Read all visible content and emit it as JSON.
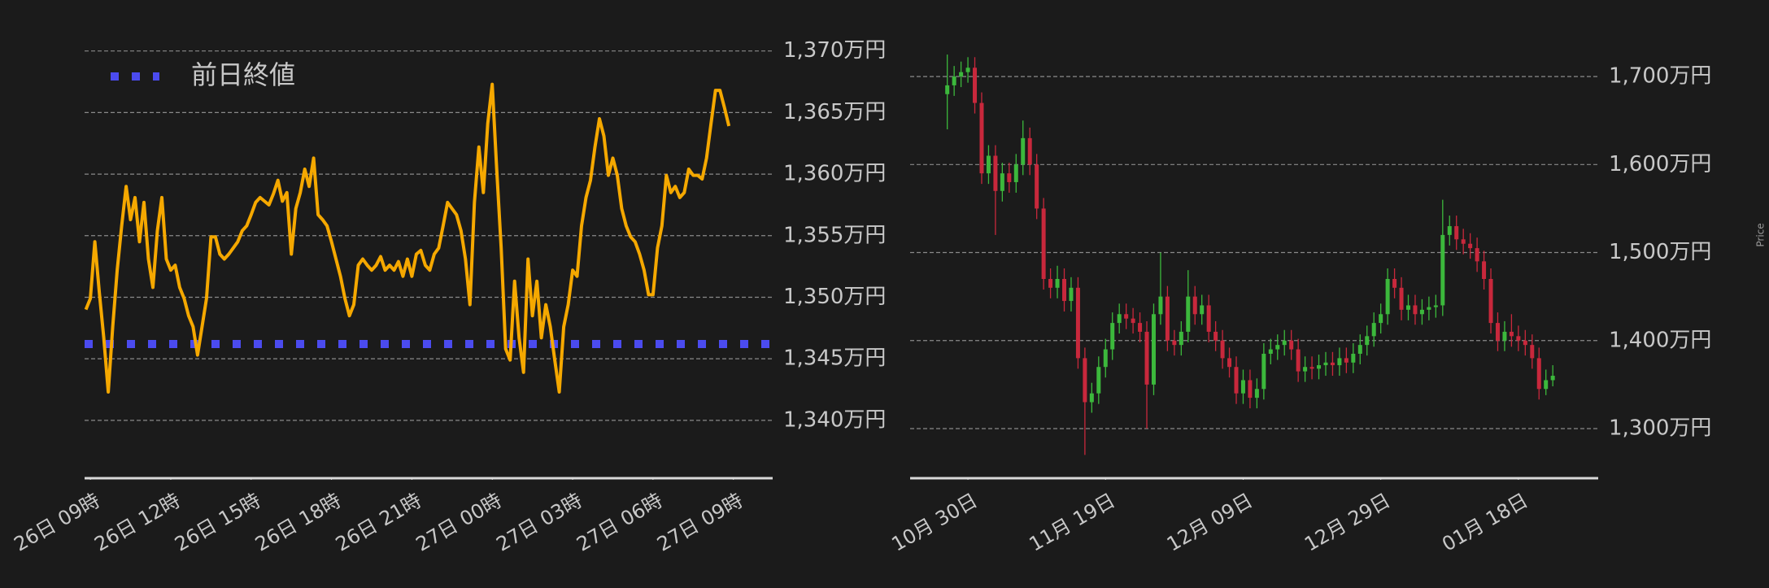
{
  "chart_data": [
    {
      "type": "line",
      "x": [
        -10,
        0,
        10,
        20,
        30,
        40,
        50,
        60,
        70,
        80,
        90,
        100,
        110,
        120,
        130,
        140,
        150,
        160,
        170,
        180,
        190,
        200,
        210,
        220,
        230,
        240,
        250,
        260,
        270,
        280,
        290,
        300,
        310,
        320,
        330,
        340,
        350,
        360,
        370,
        380,
        390,
        400,
        410,
        420,
        430,
        440,
        450,
        460,
        470,
        480,
        490,
        500,
        510,
        520,
        530,
        540,
        550,
        560,
        570,
        580,
        590,
        600,
        610,
        620,
        630,
        640,
        650,
        660,
        670,
        680,
        690,
        700,
        710,
        720,
        730,
        740,
        750,
        760,
        770,
        780,
        790,
        800,
        810,
        820,
        830,
        840,
        850,
        860,
        870,
        880,
        890,
        900,
        910,
        920,
        930,
        940,
        950,
        960,
        970,
        980,
        990,
        1000,
        1010,
        1020,
        1030,
        1040,
        1050,
        1060,
        1070,
        1080,
        1090,
        1100,
        1110,
        1120,
        1130,
        1140,
        1150,
        1160,
        1170,
        1180,
        1190,
        1200,
        1210,
        1220,
        1230,
        1240,
        1250,
        1260,
        1270,
        1280,
        1290,
        1300,
        1310,
        1320,
        1330,
        1340,
        1350,
        1360,
        1370,
        1380,
        1390,
        1400,
        1410,
        1420,
        1430
      ],
      "values": [
        1349,
        1349.9,
        1354.5,
        1350.4,
        1346.7,
        1342.3,
        1347.6,
        1352.2,
        1355.8,
        1359,
        1356.3,
        1358.1,
        1354.5,
        1357.7,
        1353.1,
        1350.8,
        1355.4,
        1358.1,
        1353.1,
        1352.2,
        1352.6,
        1350.8,
        1349.9,
        1348.5,
        1347.6,
        1345.3,
        1347.6,
        1349.9,
        1354.9,
        1354.9,
        1353.5,
        1353.1,
        1353.5,
        1354,
        1354.5,
        1355.4,
        1355.8,
        1356.7,
        1357.7,
        1358.1,
        1357.8,
        1357.5,
        1358.4,
        1359.5,
        1357.8,
        1358.5,
        1353.5,
        1357.2,
        1358.5,
        1360.4,
        1359,
        1361.3,
        1356.7,
        1356.3,
        1355.8,
        1354.5,
        1353.1,
        1351.7,
        1349.9,
        1348.5,
        1349.4,
        1352.6,
        1353.1,
        1352.6,
        1352.2,
        1352.6,
        1353.3,
        1352.2,
        1352.6,
        1352.2,
        1352.9,
        1351.7,
        1353.1,
        1351.7,
        1353.5,
        1353.8,
        1352.6,
        1352.2,
        1353.5,
        1354,
        1355.8,
        1357.7,
        1357.2,
        1356.7,
        1355.4,
        1353.1,
        1349.4,
        1357.7,
        1362.2,
        1358.5,
        1364.1,
        1367.3,
        1360.4,
        1354,
        1345.8,
        1344.9,
        1351.3,
        1346.7,
        1343.9,
        1353.1,
        1348.5,
        1351.3,
        1346.7,
        1349.4,
        1347.6,
        1344.9,
        1342.3,
        1347.6,
        1349.4,
        1352.2,
        1351.7,
        1355.8,
        1358.1,
        1359.5,
        1362.2,
        1364.5,
        1363.1,
        1359.9,
        1361.3,
        1359.9,
        1357.2,
        1355.8,
        1354.9,
        1354.5,
        1353.5,
        1352.2,
        1350.2,
        1350.2,
        1354,
        1355.8,
        1359.9,
        1358.5,
        1359,
        1358.1,
        1358.5,
        1360.4,
        1359.9,
        1359.9,
        1359.6,
        1361.3,
        1364.1,
        1366.8,
        1366.8,
        1365.4,
        1363.9
      ],
      "color": "#f5a800",
      "reference_lines": [
        {
          "name": "前日終値",
          "value": 1346.2,
          "color": "#4b4bef"
        }
      ],
      "legend": "upper left",
      "xlim": [
        -13,
        1528
      ],
      "xticks": [
        {
          "value": 0,
          "label": "26日 09時"
        },
        {
          "value": 180,
          "label": "26日 12時"
        },
        {
          "value": 360,
          "label": "26日 15時"
        },
        {
          "value": 540,
          "label": "26日 18時"
        },
        {
          "value": 720,
          "label": "26日 21時"
        },
        {
          "value": 900,
          "label": "27日 00時"
        },
        {
          "value": 1080,
          "label": "27日 03時"
        },
        {
          "value": 1260,
          "label": "27日 06時"
        },
        {
          "value": 1440,
          "label": "27日 09時"
        }
      ],
      "ylim": [
        1335.3,
        1371.5
      ],
      "yticks": [
        {
          "value": 1340,
          "label": "1,340万円"
        },
        {
          "value": 1345,
          "label": "1,345万円"
        },
        {
          "value": 1350,
          "label": "1,350万円"
        },
        {
          "value": 1355,
          "label": "1,355万円"
        },
        {
          "value": 1360,
          "label": "1,360万円"
        },
        {
          "value": 1365,
          "label": "1,365万円"
        },
        {
          "value": 1370,
          "label": "1,370万円"
        }
      ],
      "grid": true
    },
    {
      "type": "candlestick",
      "ylabel": "Price",
      "x": [
        -3,
        -2,
        -1,
        0,
        1,
        2,
        3,
        4,
        5,
        6,
        7,
        8,
        9,
        10,
        11,
        12,
        13,
        14,
        15,
        16,
        17,
        18,
        19,
        20,
        21,
        22,
        23,
        24,
        25,
        26,
        27,
        28,
        29,
        30,
        31,
        32,
        33,
        34,
        35,
        36,
        37,
        38,
        39,
        40,
        41,
        42,
        43,
        44,
        45,
        46,
        47,
        48,
        49,
        50,
        51,
        52,
        53,
        54,
        55,
        56,
        57,
        58,
        59,
        60,
        61,
        62,
        63,
        64,
        65,
        66,
        67,
        68,
        69,
        70,
        71,
        72,
        73,
        74,
        75,
        76,
        77,
        78,
        79,
        80,
        81,
        82,
        83,
        84,
        85
      ],
      "open": [
        1680,
        1690,
        1700,
        1705,
        1710,
        1670,
        1590,
        1610,
        1570,
        1590,
        1580,
        1600,
        1630,
        1600,
        1550,
        1470,
        1460,
        1470,
        1445,
        1460,
        1380,
        1330,
        1340,
        1370,
        1390,
        1420,
        1430,
        1425,
        1420,
        1410,
        1350,
        1430,
        1450,
        1400,
        1395,
        1410,
        1450,
        1430,
        1440,
        1410,
        1400,
        1380,
        1370,
        1340,
        1355,
        1335,
        1345,
        1385,
        1390,
        1395,
        1400,
        1390,
        1365,
        1370,
        1368,
        1372,
        1375,
        1372,
        1380,
        1375,
        1385,
        1395,
        1405,
        1420,
        1430,
        1470,
        1460,
        1435,
        1440,
        1430,
        1435,
        1438,
        1440,
        1520,
        1530,
        1515,
        1510,
        1505,
        1490,
        1470,
        1420,
        1400,
        1410,
        1405,
        1400,
        1395,
        1380,
        1345,
        1355
      ],
      "high": [
        1725,
        1712,
        1717,
        1722,
        1722,
        1682,
        1622,
        1622,
        1602,
        1602,
        1612,
        1650,
        1642,
        1612,
        1562,
        1482,
        1485,
        1482,
        1472,
        1472,
        1392,
        1352,
        1382,
        1402,
        1432,
        1442,
        1442,
        1437,
        1432,
        1422,
        1442,
        1500,
        1462,
        1412,
        1422,
        1480,
        1462,
        1452,
        1452,
        1422,
        1412,
        1392,
        1382,
        1367,
        1367,
        1357,
        1397,
        1402,
        1407,
        1412,
        1412,
        1402,
        1382,
        1382,
        1384,
        1387,
        1387,
        1392,
        1392,
        1397,
        1407,
        1417,
        1432,
        1442,
        1482,
        1482,
        1472,
        1452,
        1452,
        1447,
        1450,
        1452,
        1560,
        1542,
        1542,
        1527,
        1522,
        1517,
        1502,
        1482,
        1432,
        1422,
        1430,
        1417,
        1412,
        1407,
        1392,
        1367,
        1372
      ],
      "low": [
        1640,
        1678,
        1688,
        1693,
        1658,
        1578,
        1578,
        1520,
        1558,
        1568,
        1568,
        1588,
        1588,
        1538,
        1458,
        1448,
        1448,
        1433,
        1433,
        1368,
        1270,
        1318,
        1328,
        1358,
        1378,
        1408,
        1413,
        1408,
        1398,
        1300,
        1338,
        1418,
        1388,
        1383,
        1383,
        1398,
        1418,
        1418,
        1398,
        1388,
        1368,
        1358,
        1328,
        1328,
        1323,
        1323,
        1333,
        1373,
        1378,
        1383,
        1378,
        1353,
        1353,
        1356,
        1356,
        1360,
        1360,
        1360,
        1363,
        1363,
        1373,
        1383,
        1393,
        1408,
        1418,
        1448,
        1423,
        1423,
        1418,
        1418,
        1423,
        1426,
        1428,
        1508,
        1503,
        1498,
        1493,
        1478,
        1458,
        1408,
        1388,
        1388,
        1393,
        1388,
        1383,
        1368,
        1333,
        1338,
        1348
      ],
      "close": [
        1690,
        1700,
        1705,
        1710,
        1670,
        1590,
        1610,
        1570,
        1590,
        1580,
        1600,
        1630,
        1600,
        1550,
        1470,
        1460,
        1470,
        1445,
        1460,
        1380,
        1330,
        1340,
        1370,
        1390,
        1420,
        1430,
        1425,
        1420,
        1410,
        1350,
        1430,
        1450,
        1400,
        1395,
        1410,
        1450,
        1430,
        1440,
        1410,
        1400,
        1380,
        1370,
        1340,
        1355,
        1335,
        1345,
        1385,
        1390,
        1395,
        1400,
        1390,
        1365,
        1370,
        1368,
        1372,
        1375,
        1372,
        1380,
        1375,
        1385,
        1395,
        1405,
        1420,
        1430,
        1470,
        1460,
        1435,
        1440,
        1430,
        1435,
        1438,
        1440,
        1520,
        1530,
        1515,
        1510,
        1505,
        1490,
        1470,
        1420,
        1400,
        1410,
        1405,
        1400,
        1395,
        1380,
        1345,
        1355,
        1360
      ],
      "up_color": "#3cb83c",
      "down_color": "#c8283c",
      "xlim": [
        -8.4,
        91.6
      ],
      "xticks": [
        {
          "value": 0,
          "label": "10月 30日"
        },
        {
          "value": 20,
          "label": "11月 19日"
        },
        {
          "value": 40,
          "label": "12月 09日"
        },
        {
          "value": 60,
          "label": "12月 29日"
        },
        {
          "value": 80,
          "label": "01月 18日"
        }
      ],
      "ylim": [
        1243.6,
        1750
      ],
      "yticks": [
        {
          "value": 1300,
          "label": "1,300万円"
        },
        {
          "value": 1400,
          "label": "1,400万円"
        },
        {
          "value": 1500,
          "label": "1,500万円"
        },
        {
          "value": 1600,
          "label": "1,600万円"
        },
        {
          "value": 1700,
          "label": "1,700万円"
        }
      ],
      "grid": true
    }
  ]
}
